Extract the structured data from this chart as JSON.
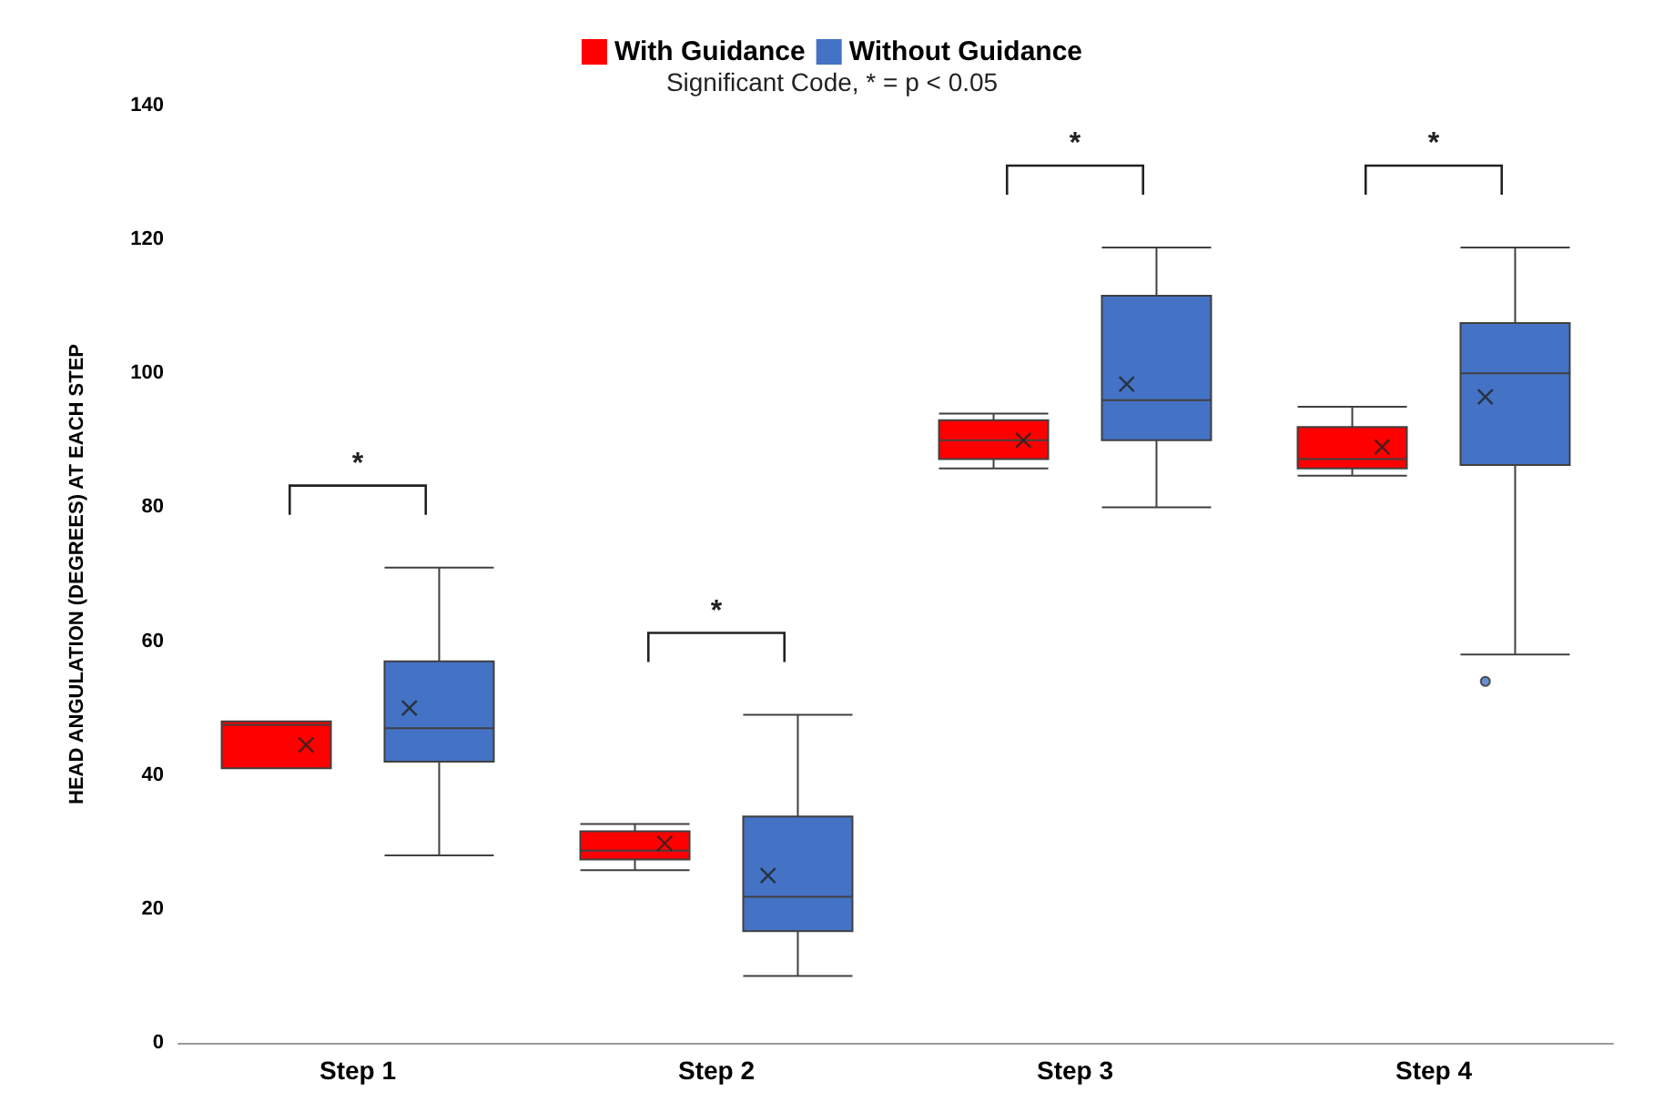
{
  "chart_data": {
    "type": "box",
    "ylabel": "HEAD ANGULATION (DEGREES) AT EACH STEP",
    "categories": [
      "Step 1",
      "Step 2",
      "Step 3",
      "Step 4"
    ],
    "series": [
      {
        "name": "With Guidance",
        "color": "#ff0000",
        "boxes": [
          {
            "low": 41,
            "q1": 41,
            "median": 47.5,
            "q3": 48,
            "high": 48,
            "mean": 44.5
          },
          {
            "low": 25.8,
            "q1": 27.4,
            "median": 28.7,
            "q3": 31.6,
            "high": 32.7,
            "mean": 29.8
          },
          {
            "low": 85.8,
            "q1": 87.2,
            "median": 90,
            "q3": 93,
            "high": 94,
            "mean": 90
          },
          {
            "low": 84.7,
            "q1": 85.8,
            "median": 87.2,
            "q3": 92,
            "high": 95,
            "mean": 89
          }
        ]
      },
      {
        "name": "Without Guidance",
        "color": "#4472c4",
        "boxes": [
          {
            "low": 28,
            "q1": 42,
            "median": 47,
            "q3": 57,
            "high": 71,
            "mean": 50
          },
          {
            "low": 10,
            "q1": 16.7,
            "median": 21.8,
            "q3": 33.8,
            "high": 49,
            "mean": 25
          },
          {
            "low": 80,
            "q1": 90,
            "median": 96,
            "q3": 111.6,
            "high": 118.8,
            "mean": 98.4
          },
          {
            "low": 58,
            "q1": 86.3,
            "median": 100,
            "q3": 107.5,
            "high": 118.8,
            "mean": 96.5,
            "outliers": [
              54
            ]
          }
        ]
      }
    ],
    "ylim": [
      0,
      140
    ],
    "yticks": [
      0,
      20,
      40,
      60,
      80,
      100,
      120,
      140
    ],
    "grid": false,
    "legend": "top",
    "annotations": [
      "Significant Code, * = p < 0.05",
      "*",
      "*",
      "*",
      "*"
    ]
  }
}
